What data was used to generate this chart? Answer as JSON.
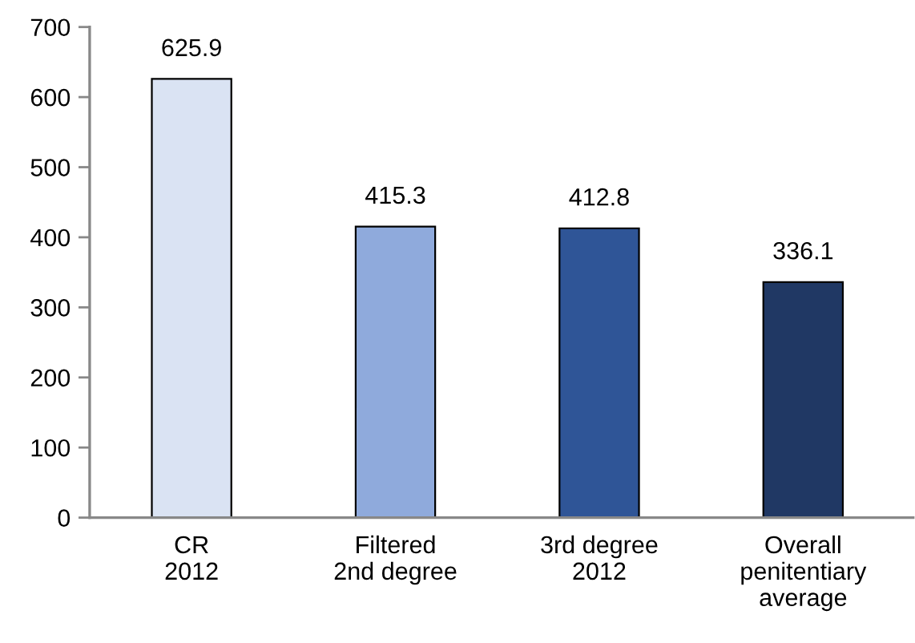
{
  "chart_data": {
    "type": "bar",
    "categories": [
      "CR\n2012",
      "Filtered\n2nd degree",
      "3rd degree\n2012",
      "Overall\npenitentiary\naverage"
    ],
    "values": [
      625.9,
      415.3,
      412.8,
      336.1
    ],
    "colors": [
      "#dae3f3",
      "#8faadc",
      "#2f5597",
      "#203864"
    ],
    "ylim": [
      0,
      700
    ],
    "yticks": [
      0,
      100,
      200,
      300,
      400,
      500,
      600,
      700
    ],
    "data_labels": true,
    "grid": false
  }
}
